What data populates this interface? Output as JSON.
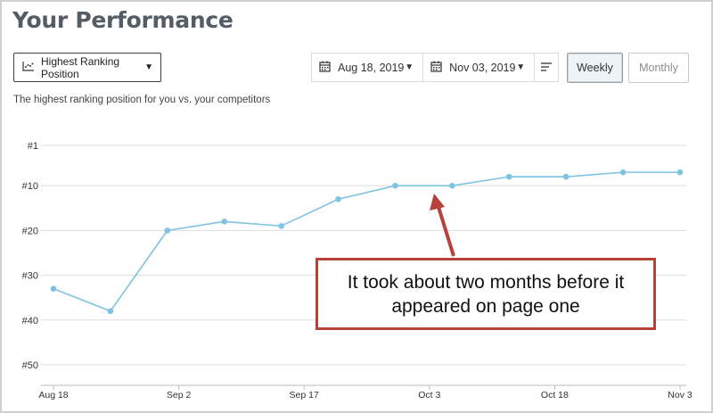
{
  "page": {
    "title": "Your Performance",
    "subtitle": "The highest ranking position for you vs. your competitors"
  },
  "controls": {
    "metric_select": {
      "label": "Highest Ranking Position",
      "icon": "scatter-chart-icon"
    },
    "start_date": "Aug 18, 2019",
    "end_date": "Nov 03, 2019",
    "filter_icon": "filter-lines-icon",
    "weekly_label": "Weekly",
    "monthly_label": "Monthly",
    "active_period": "Weekly"
  },
  "annotation": {
    "text": "It took about two months before it appeared on page one",
    "color": "#b5433a"
  },
  "chart_data": {
    "type": "line",
    "x_ticks": [
      "Aug 18",
      "Sep 2",
      "Sep 17",
      "Oct 3",
      "Oct 18",
      "Nov 3"
    ],
    "y_ticks": [
      "#1",
      "#10",
      "#20",
      "#30",
      "#40",
      "#50"
    ],
    "y_reversed": true,
    "ylim": [
      1,
      50
    ],
    "grid": true,
    "line_color": "#7ec3e3",
    "series": [
      {
        "values": [
          33,
          38,
          20,
          18,
          19,
          13,
          10,
          10,
          8,
          8,
          7,
          7
        ]
      }
    ]
  }
}
